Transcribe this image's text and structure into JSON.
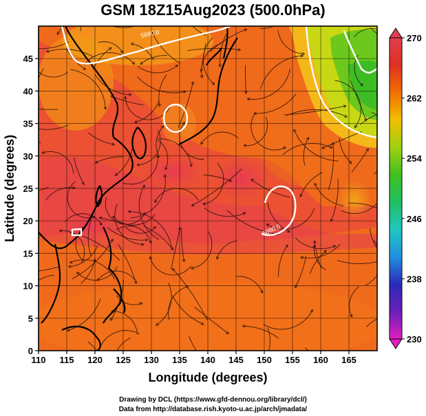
{
  "title": "GSM 18Z15Aug2023 (500.0hPa)",
  "x_axis": {
    "label": "Longitude (degrees)",
    "range": [
      110,
      170
    ],
    "ticks": [
      "110",
      "115",
      "120",
      "125",
      "130",
      "135",
      "140",
      "145",
      "150",
      "155",
      "160",
      "165"
    ]
  },
  "y_axis": {
    "label": "Latitude  (degrees)",
    "range": [
      0,
      50
    ],
    "ticks": [
      "0",
      "5",
      "10",
      "15",
      "20",
      "25",
      "30",
      "35",
      "40",
      "45"
    ]
  },
  "colorbar": {
    "min": 230,
    "max": 270,
    "ticks": [
      "230",
      "238",
      "246",
      "254",
      "262",
      "270"
    ],
    "colors": [
      "#e020c0",
      "#6a1fb8",
      "#2a2ab8",
      "#2090e0",
      "#20c8c0",
      "#20c060",
      "#40c020",
      "#a0d010",
      "#f0c000",
      "#f07000",
      "#e03020",
      "#e04050"
    ]
  },
  "map": {
    "projection": "equirectangular",
    "field": "temperature shading with streamlines",
    "contour_labels": [
      "5880.0",
      "5880.0"
    ],
    "colors": {
      "hot_core": "#e8404a",
      "warm": "#f25a1e",
      "mid": "#f08018",
      "cool_orange": "#f4a018",
      "yellow": "#e8d010",
      "green": "#40c020",
      "coastline": "#000000",
      "contour": "#ffffff",
      "grid": "#000000"
    }
  },
  "credits": [
    "Drawing by DCL (https://www.gfd-dennou.org/library/dcl/)",
    "Data from http://database.rish.kyoto-u.ac.jp/arch/jmadata/"
  ]
}
